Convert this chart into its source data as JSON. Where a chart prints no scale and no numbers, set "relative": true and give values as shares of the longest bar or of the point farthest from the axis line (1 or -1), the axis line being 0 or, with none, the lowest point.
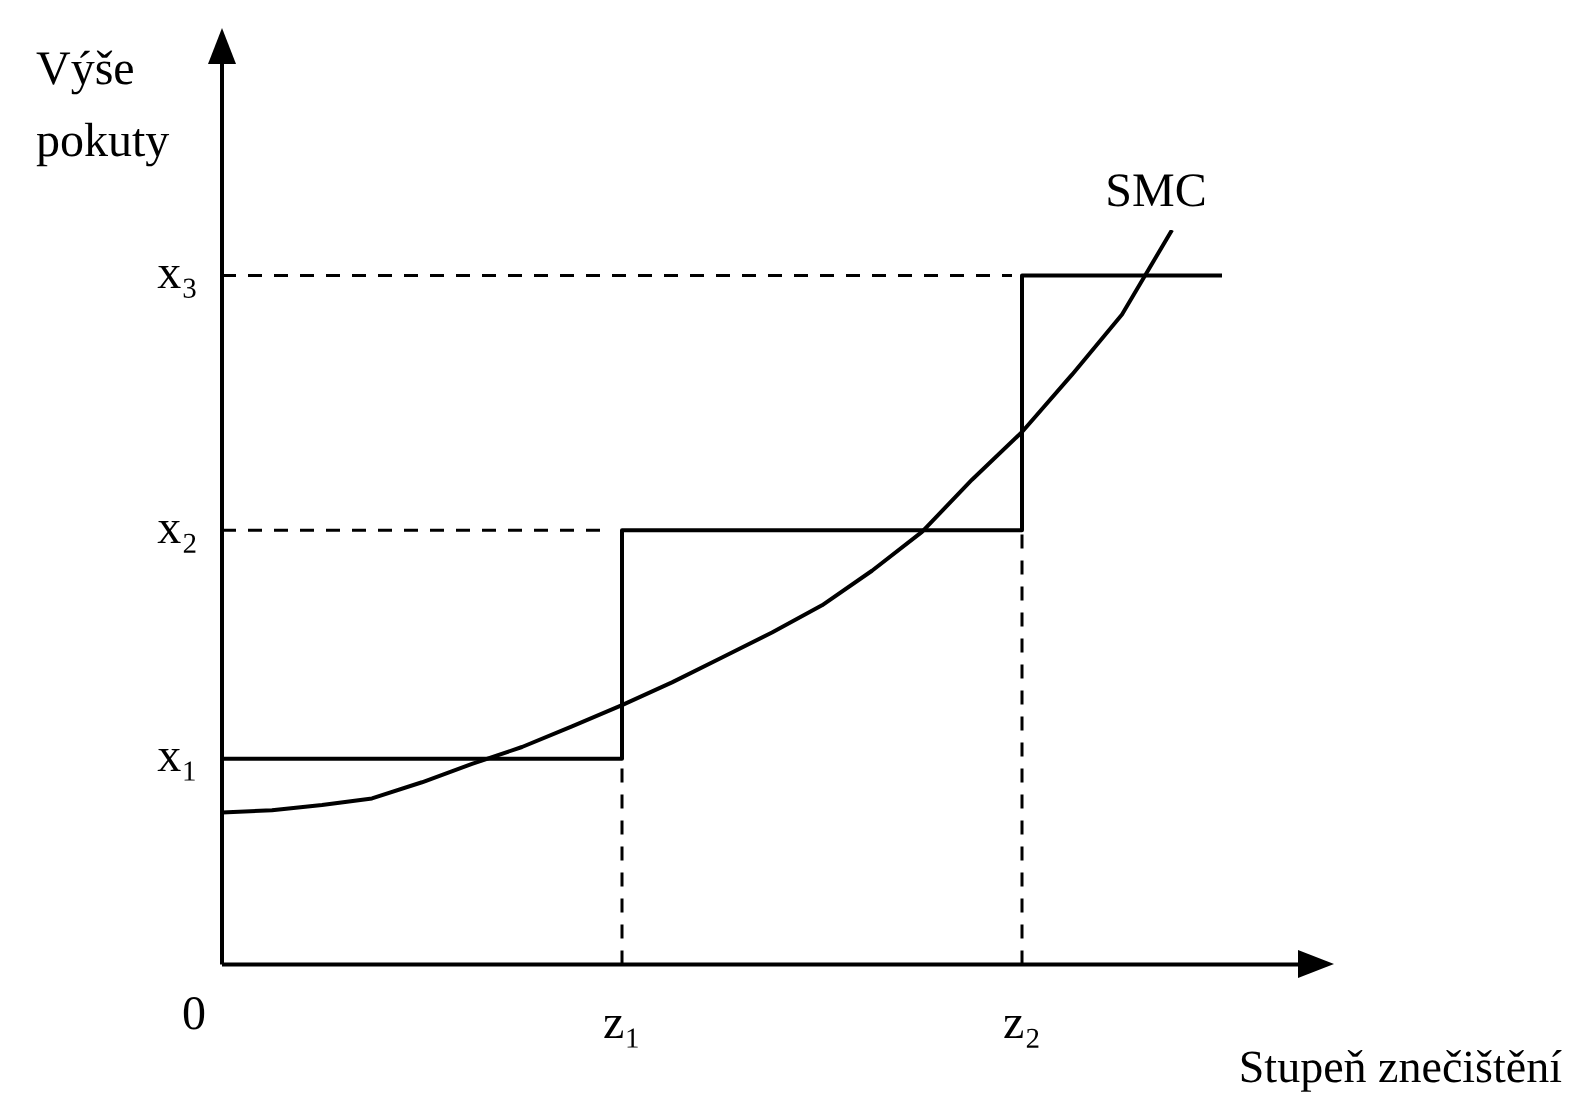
{
  "chart_data": {
    "type": "line",
    "relative": true,
    "xlabel": "Stupeň znečištění",
    "ylabel": "Výše pokuty",
    "legend": false,
    "categories": [
      null,
      null,
      null,
      null,
      null,
      null,
      null,
      null,
      "z₁",
      null,
      null,
      null,
      null,
      null,
      null,
      null,
      "z₂",
      null,
      null,
      null,
      null
    ],
    "series": [
      {
        "name": "SMC",
        "type": "line",
        "color": "#000000",
        "values": [
          0.207,
          0.21,
          0.217,
          0.226,
          0.248,
          0.273,
          0.296,
          0.324,
          0.353,
          0.384,
          0.418,
          0.452,
          0.489,
          0.536,
          0.589,
          0.66,
          0.725,
          0.803,
          0.885,
          1,
          null
        ]
      },
      {
        "type": "step",
        "color": "#000000",
        "values": [
          0.28,
          0.28,
          0.28,
          0.28,
          0.28,
          0.28,
          0.28,
          0.28,
          0.28,
          0.591,
          0.591,
          0.591,
          0.591,
          0.591,
          0.591,
          0.591,
          0.591,
          0.938,
          0.938,
          0.938,
          0.938
        ]
      }
    ],
    "ref_lines": [
      {
        "axis": "y",
        "value": 0.591,
        "label": "x₂",
        "line_style": "dashed"
      },
      {
        "axis": "y",
        "value": 0.938,
        "label": "x₃",
        "line_style": "dashed"
      },
      {
        "axis": "x",
        "value": "z₁",
        "line_style": "dashed"
      },
      {
        "axis": "x",
        "value": "z₂",
        "line_style": "dashed"
      }
    ],
    "annotations": [
      "0",
      "x₁"
    ]
  }
}
